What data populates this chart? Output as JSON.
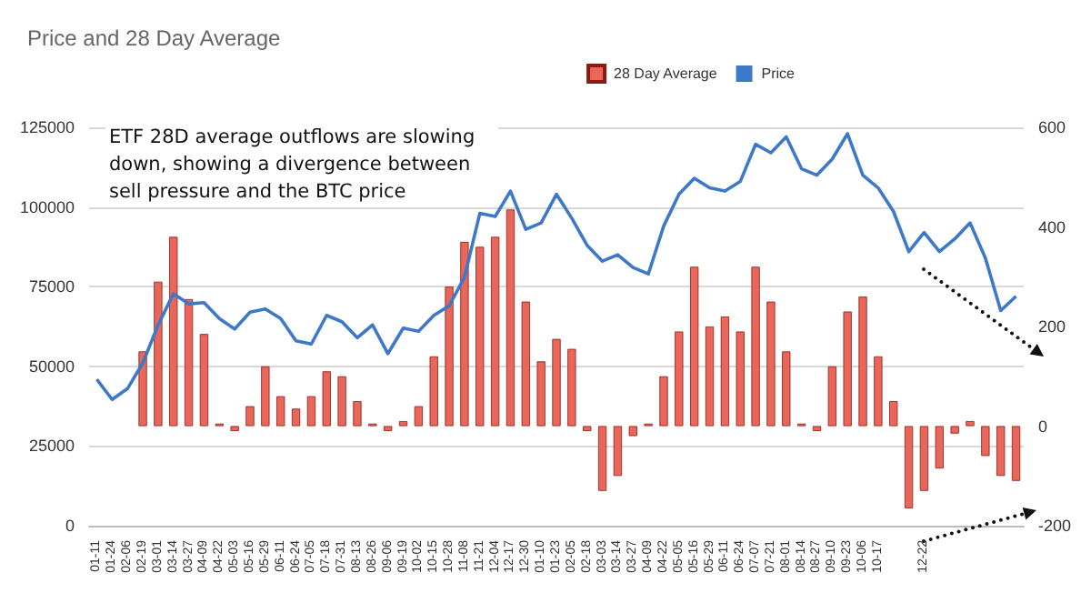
{
  "chart_data": {
    "type": "bar",
    "title": "Price and 28 Day Average",
    "categories": [
      "01-11",
      "01-24",
      "02-06",
      "02-19",
      "03-01",
      "03-14",
      "03-27",
      "04-09",
      "04-22",
      "05-03",
      "05-16",
      "05-29",
      "06-11",
      "06-24",
      "07-05",
      "07-18",
      "07-31",
      "08-13",
      "08-26",
      "09-06",
      "09-19",
      "10-02",
      "10-15",
      "10-28",
      "11-08",
      "11-21",
      "12-04",
      "12-17",
      "12-30",
      "01-10",
      "01-23",
      "02-05",
      "02-18",
      "03-03",
      "03-14",
      "03-27",
      "04-09",
      "04-22",
      "05-05",
      "05-16",
      "05-29",
      "06-11",
      "06-24",
      "07-07",
      "07-21",
      "08-01",
      "08-14",
      "08-27",
      "09-10",
      "09-23",
      "10-06",
      "10-17",
      null,
      null,
      "12-22",
      null,
      null,
      null,
      null,
      null,
      null
    ],
    "series": [
      {
        "name": "28 Day Average",
        "axis": "y2",
        "color": "#e8675a",
        "values": [
          null,
          null,
          null,
          150,
          290,
          380,
          255,
          185,
          5,
          -10,
          40,
          120,
          60,
          35,
          60,
          110,
          100,
          50,
          5,
          -10,
          10,
          40,
          140,
          280,
          370,
          360,
          380,
          435,
          250,
          130,
          175,
          155,
          -10,
          -130,
          -100,
          -20,
          5,
          100,
          190,
          320,
          200,
          220,
          190,
          320,
          250,
          150,
          5,
          -10,
          120,
          230,
          260,
          140,
          50,
          -165,
          -130,
          -85,
          -15,
          10,
          -60,
          -100,
          -110
        ]
      },
      {
        "name": "Price",
        "type": "line",
        "color": "#3d78c9",
        "values": [
          45900,
          39600,
          43000,
          51000,
          63000,
          72800,
          69600,
          70000,
          65000,
          61700,
          67000,
          68000,
          65000,
          58000,
          57000,
          66000,
          64000,
          59000,
          63000,
          54000,
          62000,
          61000,
          66000,
          69000,
          78000,
          98000,
          97000,
          105000,
          93000,
          95000,
          104000,
          96500,
          88000,
          83000,
          85000,
          81000,
          79000,
          94000,
          104000,
          109000,
          106000,
          105000,
          108000,
          119700,
          117000,
          122000,
          112000,
          110000,
          115000,
          123000,
          110000,
          106000,
          98600,
          86000,
          92000,
          86000,
          90000,
          95000,
          84000,
          67500,
          72000
        ]
      }
    ],
    "ylim": [
      0,
      125000
    ],
    "yticks": [
      0,
      25000,
      50000,
      75000,
      100000,
      125000
    ],
    "y2lim": [
      -200,
      600
    ],
    "y2ticks": [
      -200,
      0,
      200,
      400,
      600
    ],
    "grid": "y",
    "legend": "top right",
    "marker": "none",
    "line_style": "solid",
    "annotations": [
      "ETF 28D average outflows are slowing down, showing a divergence between sell pressure and the BTC price"
    ]
  }
}
